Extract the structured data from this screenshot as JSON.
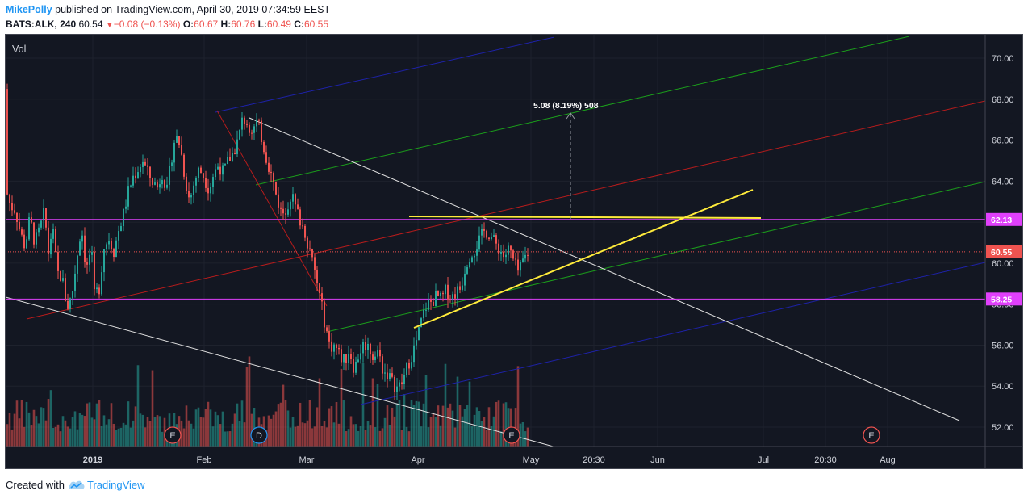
{
  "header": {
    "author": "MikePolly",
    "publish_text": "published on TradingView.com, April 30, 2019 07:34:59 EEST",
    "symbol": "BATS:ALK, 240",
    "last": "60.54",
    "change": "−0.08 (−0.13%)",
    "o_label": "O:",
    "o_value": "60.67",
    "h_label": "H:",
    "h_value": "60.76",
    "l_label": "L:",
    "l_value": "60.49",
    "c_label": "C:",
    "c_value": "60.55"
  },
  "footer": {
    "created_with": "Created with",
    "brand": "TradingView"
  },
  "chart_data": {
    "type": "candlestick",
    "volume_label": "Vol",
    "y_ticks": [
      52,
      54,
      56,
      58,
      60,
      62,
      64,
      66,
      68,
      70
    ],
    "y_tick_labels": [
      "52.00",
      "54.00",
      "56.00",
      "58.00",
      "60.00",
      "62.00",
      "64.00",
      "66.00",
      "68.00",
      "70.00"
    ],
    "ylim": [
      51.0,
      71.0
    ],
    "x_tick_labels": [
      "2019",
      "Feb",
      "Mar",
      "Apr",
      "May",
      "20:30",
      "Jun",
      "Jul",
      "20:30",
      "Aug"
    ],
    "price_badges": [
      {
        "label": "62.13",
        "value": 62.13,
        "color": "#e040fb"
      },
      {
        "label": "60.55",
        "value": 60.55,
        "color": "#ef5350"
      },
      {
        "label": "58.25",
        "value": 58.25,
        "color": "#e040fb"
      }
    ],
    "measure_label": "5.08 (8.19%) 508",
    "event_markers": [
      "E",
      "D",
      "E",
      "E"
    ],
    "colors": {
      "up": "#26a69a",
      "down": "#ef5350",
      "background": "#131722",
      "horizontal_lines": "#e040fb",
      "trendlines": "#ffeb3b"
    },
    "price_path": [
      [
        0,
        68.5
      ],
      [
        3,
        63.5
      ],
      [
        8,
        62.8
      ],
      [
        14,
        62.6
      ],
      [
        20,
        61.5
      ],
      [
        26,
        60.8
      ],
      [
        32,
        62.2
      ],
      [
        38,
        61.0
      ],
      [
        44,
        61.6
      ],
      [
        50,
        62.5
      ],
      [
        55,
        60.5
      ],
      [
        60,
        61.8
      ],
      [
        66,
        59.5
      ],
      [
        72,
        59.3
      ],
      [
        78,
        57.8
      ],
      [
        84,
        58.4
      ],
      [
        90,
        60.2
      ],
      [
        96,
        61.8
      ],
      [
        102,
        59.6
      ],
      [
        108,
        60.8
      ],
      [
        112,
        58.4
      ],
      [
        118,
        58.8
      ],
      [
        124,
        60.8
      ],
      [
        130,
        61.2
      ],
      [
        136,
        60.6
      ],
      [
        142,
        61.6
      ],
      [
        148,
        62.4
      ],
      [
        154,
        63.5
      ],
      [
        160,
        64.2
      ],
      [
        166,
        64.6
      ],
      [
        172,
        65.0
      ],
      [
        178,
        64.4
      ],
      [
        184,
        64.0
      ],
      [
        190,
        63.7
      ],
      [
        196,
        64.4
      ],
      [
        202,
        63.5
      ],
      [
        207,
        65.0
      ],
      [
        212,
        66.2
      ],
      [
        218,
        65.8
      ],
      [
        224,
        64.2
      ],
      [
        230,
        63.0
      ],
      [
        236,
        64.0
      ],
      [
        242,
        64.6
      ],
      [
        248,
        64.2
      ],
      [
        254,
        63.6
      ],
      [
        260,
        64.4
      ],
      [
        266,
        64.8
      ],
      [
        272,
        64.4
      ],
      [
        278,
        65.0
      ],
      [
        284,
        65.4
      ],
      [
        290,
        66.0
      ],
      [
        296,
        67.1
      ],
      [
        302,
        66.8
      ],
      [
        308,
        66.5
      ],
      [
        314,
        66.9
      ],
      [
        320,
        66.0
      ],
      [
        326,
        65.0
      ],
      [
        332,
        64.2
      ],
      [
        338,
        63.2
      ],
      [
        344,
        62.4
      ],
      [
        350,
        62.7
      ],
      [
        356,
        63.4
      ],
      [
        362,
        62.6
      ],
      [
        368,
        62.0
      ],
      [
        374,
        61.4
      ],
      [
        380,
        60.4
      ],
      [
        386,
        59.4
      ],
      [
        392,
        58.2
      ],
      [
        398,
        57.0
      ],
      [
        404,
        55.9
      ],
      [
        410,
        56.0
      ],
      [
        416,
        55.5
      ],
      [
        422,
        55.2
      ],
      [
        428,
        55.8
      ],
      [
        434,
        54.8
      ],
      [
        440,
        55.6
      ],
      [
        446,
        56.1
      ],
      [
        452,
        55.9
      ],
      [
        458,
        55.4
      ],
      [
        464,
        55.7
      ],
      [
        470,
        54.7
      ],
      [
        476,
        54.6
      ],
      [
        482,
        54.1
      ],
      [
        488,
        53.9
      ],
      [
        494,
        54.2
      ],
      [
        500,
        55.0
      ],
      [
        506,
        55.6
      ],
      [
        512,
        56.3
      ],
      [
        518,
        57.3
      ],
      [
        524,
        58.0
      ],
      [
        530,
        58.1
      ],
      [
        536,
        58.4
      ],
      [
        542,
        58.2
      ],
      [
        548,
        58.7
      ],
      [
        554,
        58.3
      ],
      [
        560,
        58.6
      ],
      [
        566,
        58.8
      ],
      [
        572,
        59.9
      ],
      [
        578,
        60.5
      ],
      [
        584,
        60.7
      ],
      [
        590,
        61.2
      ],
      [
        596,
        61.6
      ],
      [
        602,
        61.4
      ],
      [
        608,
        61.0
      ],
      [
        614,
        60.7
      ],
      [
        620,
        60.3
      ],
      [
        626,
        60.7
      ],
      [
        632,
        60.0
      ],
      [
        638,
        59.5
      ],
      [
        644,
        60.2
      ],
      [
        650,
        60.55
      ]
    ]
  }
}
